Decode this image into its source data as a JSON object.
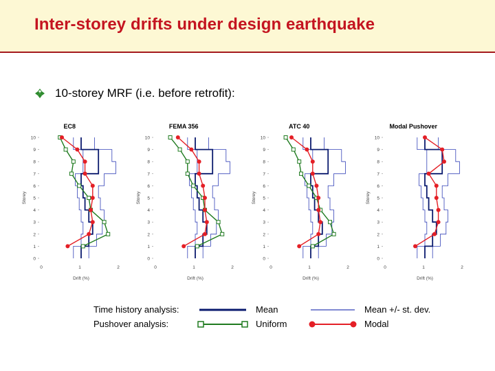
{
  "slide": {
    "title": "Inter-storey drifts under design earthquake",
    "bullet": "10-storey MRF (i.e. before retrofit):"
  },
  "colors": {
    "title": "#c41420",
    "band": "#fdf8d4",
    "mean": "#0a1a6e",
    "std": "#3342b8",
    "uniform": "#1f7a1f",
    "modal": "#e41f26",
    "bullet": "#2e8b2e"
  },
  "legend": {
    "row1_label": "Time history analysis:",
    "row2_label": "Pushover analysis:",
    "mean": "Mean",
    "std": "Mean +/- st. dev.",
    "uniform": "Uniform",
    "modal": "Modal"
  },
  "chart_data": [
    {
      "type": "line",
      "title": "EC8",
      "xlabel": "Drift (%)",
      "ylabel": "Storey",
      "xlim": [
        0,
        2
      ],
      "ylim": [
        0,
        10
      ],
      "x_ticks": [
        "0",
        "1",
        "2"
      ],
      "y_ticks": [
        "0",
        "1",
        "2",
        "3",
        "4",
        "5",
        "6",
        "7",
        "8",
        "9",
        "10"
      ],
      "storeys": [
        1,
        2,
        3,
        4,
        5,
        6,
        7,
        8,
        9,
        10
      ],
      "series": [
        {
          "name": "Mean",
          "values": [
            1.0,
            1.2,
            1.3,
            1.2,
            1.1,
            1.05,
            1.0,
            1.45,
            1.45,
            1.0
          ]
        },
        {
          "name": "Mean +/- st. dev.",
          "values": [
            1.2,
            1.4,
            1.55,
            1.6,
            1.5,
            1.45,
            1.6,
            1.9,
            1.8,
            1.35
          ]
        },
        {
          "name": "Mean +/- st. dev.",
          "values": [
            0.8,
            1.0,
            1.05,
            1.0,
            0.95,
            0.9,
            0.85,
            1.05,
            1.05,
            0.8
          ]
        },
        {
          "name": "Uniform",
          "values": [
            1.05,
            1.7,
            1.6,
            1.25,
            1.2,
            0.95,
            0.75,
            0.8,
            0.6,
            0.45
          ]
        },
        {
          "name": "Modal",
          "values": [
            0.65,
            1.2,
            1.3,
            1.25,
            1.3,
            1.3,
            1.1,
            1.1,
            0.9,
            0.5
          ]
        }
      ]
    },
    {
      "type": "line",
      "title": "FEMA 356",
      "xlabel": "Drift (%)",
      "ylabel": "Storey",
      "xlim": [
        0,
        2
      ],
      "ylim": [
        0,
        10
      ],
      "x_ticks": [
        "0",
        "1",
        "2"
      ],
      "y_ticks": [
        "0",
        "1",
        "2",
        "3",
        "4",
        "5",
        "6",
        "7",
        "8",
        "9",
        "10"
      ],
      "storeys": [
        1,
        2,
        3,
        4,
        5,
        6,
        7,
        8,
        9,
        10
      ],
      "series": [
        {
          "name": "Mean",
          "values": [
            1.0,
            1.2,
            1.3,
            1.2,
            1.1,
            1.05,
            1.0,
            1.45,
            1.45,
            1.0
          ]
        },
        {
          "name": "Mean +/- st. dev.",
          "values": [
            1.2,
            1.4,
            1.55,
            1.6,
            1.5,
            1.45,
            1.6,
            1.9,
            1.8,
            1.35
          ]
        },
        {
          "name": "Mean +/- st. dev.",
          "values": [
            0.8,
            1.0,
            1.05,
            1.0,
            0.95,
            0.9,
            0.85,
            1.05,
            1.05,
            0.8
          ]
        },
        {
          "name": "Uniform",
          "values": [
            1.05,
            1.7,
            1.6,
            1.25,
            1.2,
            0.95,
            0.8,
            0.8,
            0.6,
            0.35
          ]
        },
        {
          "name": "Modal",
          "values": [
            0.7,
            1.25,
            1.3,
            1.25,
            1.25,
            1.2,
            1.1,
            1.1,
            0.9,
            0.55
          ]
        }
      ]
    },
    {
      "type": "line",
      "title": "ATC 40",
      "xlabel": "Drift (%)",
      "ylabel": "Storey",
      "xlim": [
        0,
        2
      ],
      "ylim": [
        0,
        10
      ],
      "x_ticks": [
        "0",
        "1",
        "2"
      ],
      "y_ticks": [
        "0",
        "1",
        "2",
        "3",
        "4",
        "5",
        "6",
        "7",
        "8",
        "9",
        "10"
      ],
      "storeys": [
        1,
        2,
        3,
        4,
        5,
        6,
        7,
        8,
        9,
        10
      ],
      "series": [
        {
          "name": "Mean",
          "values": [
            1.0,
            1.2,
            1.3,
            1.2,
            1.1,
            1.05,
            1.0,
            1.45,
            1.45,
            1.0
          ]
        },
        {
          "name": "Mean +/- st. dev.",
          "values": [
            1.2,
            1.4,
            1.55,
            1.6,
            1.5,
            1.45,
            1.6,
            1.9,
            1.8,
            1.35
          ]
        },
        {
          "name": "Mean +/- st. dev.",
          "values": [
            0.8,
            1.0,
            1.05,
            1.0,
            0.95,
            0.9,
            0.85,
            1.05,
            1.05,
            0.8
          ]
        },
        {
          "name": "Uniform",
          "values": [
            1.05,
            1.6,
            1.5,
            1.25,
            1.15,
            0.95,
            0.75,
            0.7,
            0.55,
            0.35
          ]
        },
        {
          "name": "Modal",
          "values": [
            0.7,
            1.2,
            1.25,
            1.2,
            1.2,
            1.15,
            1.05,
            1.05,
            0.9,
            0.5
          ]
        }
      ]
    },
    {
      "type": "line",
      "title": "Modal Pushover",
      "xlabel": "Drift (%)",
      "ylabel": "Storey",
      "xlim": [
        0,
        2
      ],
      "ylim": [
        0,
        10
      ],
      "x_ticks": [
        "0",
        "1",
        "2"
      ],
      "y_ticks": [
        "0",
        "1",
        "2",
        "3",
        "4",
        "5",
        "6",
        "7",
        "8",
        "9",
        "10"
      ],
      "storeys": [
        1,
        2,
        3,
        4,
        5,
        6,
        7,
        8,
        9,
        10
      ],
      "series": [
        {
          "name": "Mean",
          "values": [
            1.0,
            1.2,
            1.3,
            1.2,
            1.1,
            1.05,
            1.0,
            1.45,
            1.45,
            1.0
          ]
        },
        {
          "name": "Mean +/- st. dev.",
          "values": [
            1.2,
            1.4,
            1.55,
            1.6,
            1.5,
            1.45,
            1.6,
            1.9,
            1.8,
            1.35
          ]
        },
        {
          "name": "Mean +/- st. dev.",
          "values": [
            0.8,
            1.0,
            1.05,
            1.0,
            0.95,
            0.9,
            0.85,
            1.05,
            1.05,
            0.8
          ]
        },
        {
          "name": "Modal",
          "values": [
            0.75,
            1.25,
            1.35,
            1.35,
            1.3,
            1.3,
            1.1,
            1.5,
            1.45,
            1.0
          ]
        }
      ]
    }
  ]
}
